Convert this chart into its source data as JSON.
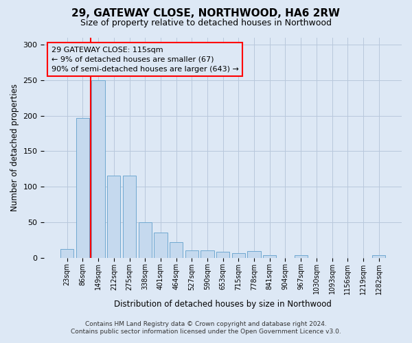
{
  "title": "29, GATEWAY CLOSE, NORTHWOOD, HA6 2RW",
  "subtitle": "Size of property relative to detached houses in Northwood",
  "xlabel": "Distribution of detached houses by size in Northwood",
  "ylabel": "Number of detached properties",
  "bar_labels": [
    "23sqm",
    "86sqm",
    "149sqm",
    "212sqm",
    "275sqm",
    "338sqm",
    "401sqm",
    "464sqm",
    "527sqm",
    "590sqm",
    "653sqm",
    "715sqm",
    "778sqm",
    "841sqm",
    "904sqm",
    "967sqm",
    "1030sqm",
    "1093sqm",
    "1156sqm",
    "1219sqm",
    "1282sqm"
  ],
  "bar_values": [
    12,
    197,
    250,
    116,
    116,
    50,
    35,
    22,
    10,
    10,
    8,
    6,
    9,
    3,
    0,
    3,
    0,
    0,
    0,
    0,
    3
  ],
  "bar_color": "#c5d9ee",
  "bar_edge_color": "#6fa8d0",
  "redline_x": 1.5,
  "annotation_text": "29 GATEWAY CLOSE: 115sqm\n← 9% of detached houses are smaller (67)\n90% of semi-detached houses are larger (643) →",
  "ylim": [
    0,
    310
  ],
  "yticks": [
    0,
    50,
    100,
    150,
    200,
    250,
    300
  ],
  "footnote1": "Contains HM Land Registry data © Crown copyright and database right 2024.",
  "footnote2": "Contains public sector information licensed under the Open Government Licence v3.0.",
  "bg_color": "#dde8f5",
  "plot_bg_color": "#dde8f5",
  "grid_color": "#b8c8dc"
}
